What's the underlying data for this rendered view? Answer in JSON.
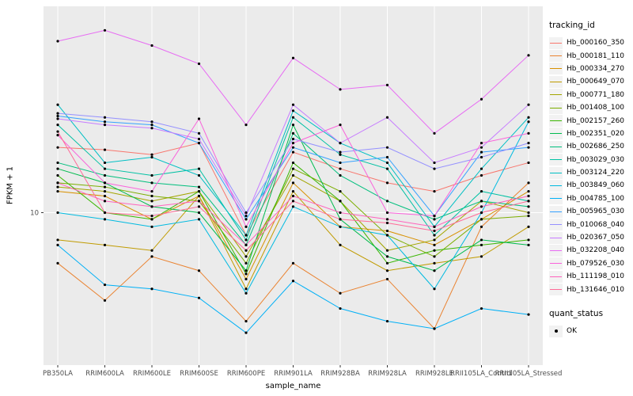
{
  "chart_data": {
    "type": "line",
    "title": "",
    "xlabel": "sample_name",
    "ylabel": "FPKM + 1",
    "y_scale": "log10",
    "ylim": [
      0.9,
      260
    ],
    "y_ticks": [
      {
        "value": 10,
        "label": "10"
      }
    ],
    "grid": true,
    "panel_background": "#EBEBEB",
    "grid_color": "#FFFFFF",
    "tick_label_color": "#4D4D4D",
    "point": {
      "shape": "circle",
      "color": "#000000",
      "radius": 1.6
    },
    "categories": [
      "PB350LA",
      "RRIM600LA",
      "RRIM600LE",
      "RRIM600SE",
      "RRIM600PE",
      "RRIM901LA",
      "RRIM928BA",
      "RRIM928LA",
      "RRIM928LE",
      "RRII105LA_Control",
      "RRII105LA_Stressed"
    ],
    "series": [
      {
        "name": "Hb_000160_350",
        "color": "#F8766D",
        "values": [
          28,
          27,
          25,
          30,
          7,
          26,
          20,
          16,
          14,
          18,
          22
        ]
      },
      {
        "name": "Hb_000181_110",
        "color": "#EA8331",
        "values": [
          4.5,
          2.5,
          5,
          4,
          1.8,
          4.5,
          2.8,
          3.5,
          1.6,
          8,
          16
        ]
      },
      {
        "name": "Hb_000334_270",
        "color": "#D89000",
        "values": [
          14,
          13,
          9,
          13,
          3.5,
          16,
          8,
          7.5,
          6,
          9,
          14
        ]
      },
      {
        "name": "Hb_000649_070",
        "color": "#C09B00",
        "values": [
          6.5,
          6,
          5.5,
          13,
          3,
          14,
          6,
          4,
          4.5,
          5,
          8
        ]
      },
      {
        "name": "Hb_000771_180",
        "color": "#A3A500",
        "values": [
          15,
          14,
          12,
          14,
          5,
          18,
          12,
          5.5,
          6.5,
          12,
          10
        ]
      },
      {
        "name": "Hb_001408_100",
        "color": "#7CAE00",
        "values": [
          16,
          15,
          13,
          12,
          4.5,
          20,
          14,
          7,
          5,
          9,
          9.5
        ]
      },
      {
        "name": "Hb_002157_260",
        "color": "#39B600",
        "values": [
          18,
          10,
          9,
          14,
          3.8,
          22,
          12,
          4.5,
          5.5,
          6,
          6.5
        ]
      },
      {
        "name": "Hb_002351_020",
        "color": "#00BB4E",
        "values": [
          20,
          16,
          11,
          10,
          4,
          40,
          9,
          5,
          4,
          6.5,
          6
        ]
      },
      {
        "name": "Hb_002686_250",
        "color": "#00BF7D",
        "values": [
          22,
          18,
          16,
          15,
          6,
          35,
          18,
          12,
          9,
          12,
          11
        ]
      },
      {
        "name": "Hb_003029_030",
        "color": "#00C1A3",
        "values": [
          40,
          20,
          18,
          20,
          6.5,
          45,
          25,
          20,
          7,
          14,
          12
        ]
      },
      {
        "name": "Hb_003124_220",
        "color": "#00BFC4",
        "values": [
          55,
          22,
          24,
          18,
          7,
          50,
          30,
          22,
          8,
          20,
          45
        ]
      },
      {
        "name": "Hb_003849_060",
        "color": "#00BAE0",
        "values": [
          10,
          9,
          8,
          9,
          2.8,
          11,
          8,
          7,
          3,
          10,
          42
        ]
      },
      {
        "name": "Hb_004785_100",
        "color": "#00B0F6",
        "values": [
          6,
          3.2,
          3,
          2.6,
          1.5,
          3.4,
          2.2,
          1.8,
          1.6,
          2.2,
          2
        ]
      },
      {
        "name": "Hb_005965_030",
        "color": "#35A2FF",
        "values": [
          46,
          42,
          40,
          30,
          9,
          28,
          22,
          24,
          9.5,
          26,
          28
        ]
      },
      {
        "name": "Hb_010068_040",
        "color": "#9590FF",
        "values": [
          48,
          45,
          42,
          35,
          10,
          32,
          26,
          28,
          20,
          24,
          30
        ]
      },
      {
        "name": "Hb_020367_050",
        "color": "#C77CFF",
        "values": [
          44,
          40,
          38,
          32,
          9.5,
          55,
          30,
          45,
          22,
          28,
          55
        ]
      },
      {
        "name": "Hb_032208_040",
        "color": "#E76BF3",
        "values": [
          150,
          178,
          140,
          105,
          40,
          115,
          70,
          75,
          35,
          60,
          120
        ]
      },
      {
        "name": "Hb_079526_030",
        "color": "#FA62DB",
        "values": [
          34,
          16,
          14,
          44,
          8,
          30,
          40,
          10,
          9.5,
          30,
          35
        ]
      },
      {
        "name": "Hb_111198_010",
        "color": "#FF62BC",
        "values": [
          16,
          12,
          11,
          12,
          6,
          13,
          10,
          9,
          8,
          11,
          13
        ]
      },
      {
        "name": "Hb_131646_010",
        "color": "#FF6A98",
        "values": [
          36,
          10,
          9.5,
          11,
          5.5,
          12,
          9,
          8.5,
          7.5,
          10,
          12
        ]
      }
    ],
    "legend": {
      "position": "right",
      "color_legend_title": "tracking_id",
      "shape_legend_title": "quant_status",
      "shape_legend_entries": [
        {
          "label": "OK",
          "marker": "black-point"
        }
      ]
    }
  }
}
